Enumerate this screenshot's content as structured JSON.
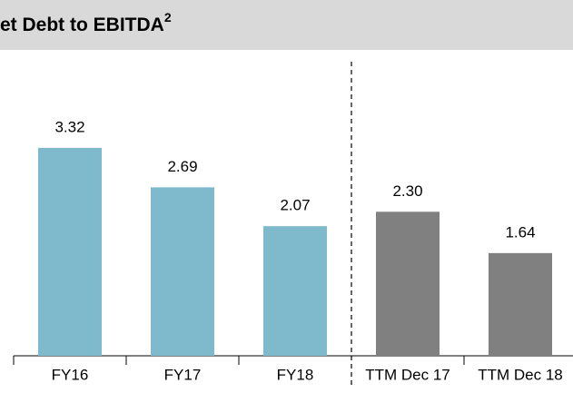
{
  "chart_data": {
    "type": "bar",
    "title": "et Debt to EBITDA",
    "title_superscript": "2",
    "categories": [
      "FY16",
      "FY17",
      "FY18",
      "TTM Dec 17",
      "TTM Dec 18"
    ],
    "values": [
      3.32,
      2.69,
      2.07,
      2.3,
      1.64
    ],
    "value_labels": [
      "3.32",
      "2.69",
      "2.07",
      "2.30",
      "1.64"
    ],
    "colors": [
      "#7fb9cc",
      "#7fb9cc",
      "#7fb9cc",
      "#808080",
      "#808080"
    ],
    "ylim": [
      0,
      4
    ],
    "grid": false
  }
}
